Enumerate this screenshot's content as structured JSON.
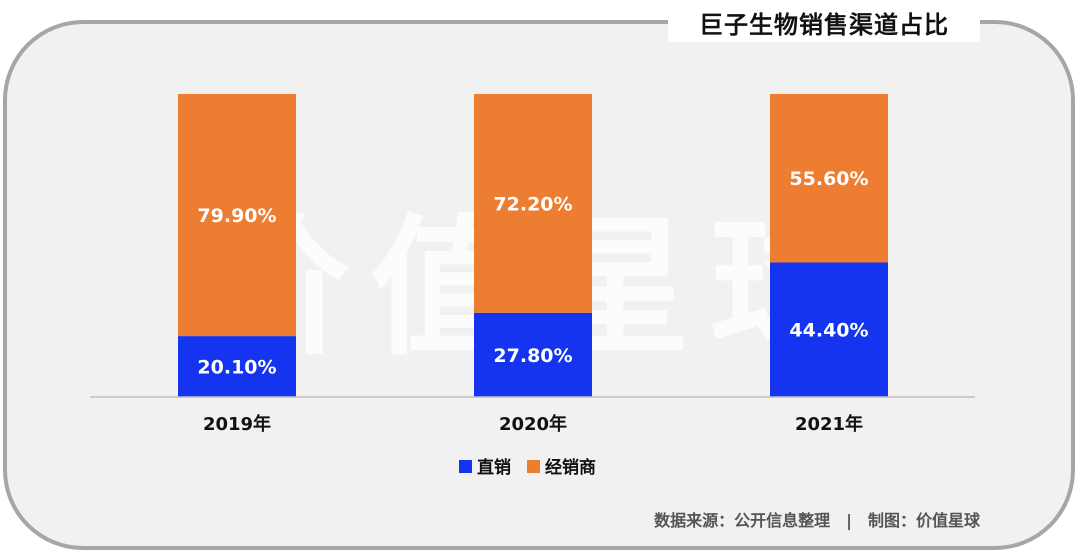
{
  "header": {
    "title": "巨子生物销售渠道占比"
  },
  "watermark": {
    "text": "价值星球"
  },
  "footer": {
    "source": "数据来源：公开信息整理",
    "separator": "|",
    "producer": "制图：价值星球"
  },
  "colors": {
    "direct": "#1434f0",
    "distributor": "#ed7d31",
    "axis": "#bfbfbf"
  },
  "chart_data": {
    "type": "bar",
    "stacked": true,
    "categories": [
      "2019年",
      "2020年",
      "2021年"
    ],
    "series": [
      {
        "name": "直销",
        "values": [
          20.1,
          27.8,
          44.4
        ],
        "labels": [
          "20.10%",
          "27.80%",
          "44.40%"
        ]
      },
      {
        "name": "经销商",
        "values": [
          79.9,
          72.2,
          55.6
        ],
        "labels": [
          "79.90%",
          "72.20%",
          "55.60%"
        ]
      }
    ],
    "ylim": [
      0,
      100
    ],
    "title": "巨子生物销售渠道占比",
    "legend_position": "bottom",
    "grid": false
  }
}
